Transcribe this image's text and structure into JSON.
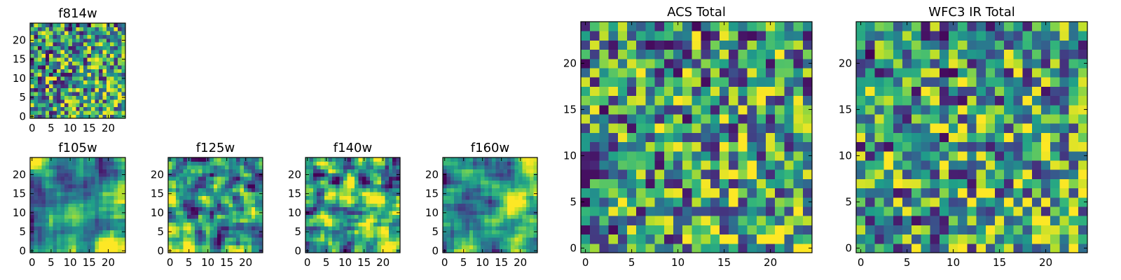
{
  "figure": {
    "colormap": "viridis",
    "colormap_stops": [
      "#440154",
      "#482878",
      "#3e4989",
      "#31688e",
      "#26828e",
      "#1f9e89",
      "#35b779",
      "#6ece58",
      "#b5de2b",
      "#fde725"
    ]
  },
  "chart_data": [
    {
      "id": "f814w",
      "type": "heatmap",
      "title": "f814w",
      "grid_size": [
        25,
        25
      ],
      "xlim": [
        -0.5,
        24.5
      ],
      "ylim": [
        -0.5,
        24.5
      ],
      "xticks": [
        0,
        5,
        10,
        15,
        20
      ],
      "yticks": [
        0,
        5,
        10,
        15,
        20
      ],
      "texture_scale": 1,
      "seed": 11,
      "note_values": "per-pixel intensities not legible; speckled noise with brighter lower-right"
    },
    {
      "id": "f105w",
      "type": "heatmap",
      "title": "f105w",
      "grid_size": [
        25,
        25
      ],
      "xlim": [
        -0.5,
        24.5
      ],
      "ylim": [
        -0.5,
        24.5
      ],
      "xticks": [
        0,
        5,
        10,
        15,
        20
      ],
      "yticks": [
        0,
        5,
        10,
        15,
        20
      ],
      "texture_scale": 3,
      "seed": 23
    },
    {
      "id": "f125w",
      "type": "heatmap",
      "title": "f125w",
      "grid_size": [
        25,
        25
      ],
      "xlim": [
        -0.5,
        24.5
      ],
      "ylim": [
        -0.5,
        24.5
      ],
      "xticks": [
        0,
        5,
        10,
        15,
        20
      ],
      "yticks": [
        0,
        5,
        10,
        15,
        20
      ],
      "texture_scale": 2,
      "seed": 37
    },
    {
      "id": "f140w",
      "type": "heatmap",
      "title": "f140w",
      "grid_size": [
        25,
        25
      ],
      "xlim": [
        -0.5,
        24.5
      ],
      "ylim": [
        -0.5,
        24.5
      ],
      "xticks": [
        0,
        5,
        10,
        15,
        20
      ],
      "yticks": [
        0,
        5,
        10,
        15,
        20
      ],
      "texture_scale": 2,
      "seed": 41
    },
    {
      "id": "f160w",
      "type": "heatmap",
      "title": "f160w",
      "grid_size": [
        25,
        25
      ],
      "xlim": [
        -0.5,
        24.5
      ],
      "ylim": [
        -0.5,
        24.5
      ],
      "xticks": [
        0,
        5,
        10,
        15,
        20
      ],
      "yticks": [
        0,
        5,
        10,
        15,
        20
      ],
      "texture_scale": 3,
      "seed": 53
    },
    {
      "id": "acs_total",
      "type": "heatmap",
      "title": "ACS Total",
      "grid_size": [
        25,
        25
      ],
      "xlim": [
        -0.5,
        24.5
      ],
      "ylim": [
        -0.5,
        24.5
      ],
      "xticks": [
        0,
        5,
        10,
        15,
        20
      ],
      "yticks": [
        0,
        5,
        10,
        15,
        20
      ],
      "texture_scale": 1,
      "seed": 67
    },
    {
      "id": "wfc3_ir_total",
      "type": "heatmap",
      "title": "WFC3 IR Total",
      "grid_size": [
        25,
        25
      ],
      "xlim": [
        -0.5,
        24.5
      ],
      "ylim": [
        -0.5,
        24.5
      ],
      "xticks": [
        0,
        5,
        10,
        15,
        20
      ],
      "yticks": [
        0,
        5,
        10,
        15,
        20
      ],
      "texture_scale": 1,
      "seed": 79
    }
  ]
}
